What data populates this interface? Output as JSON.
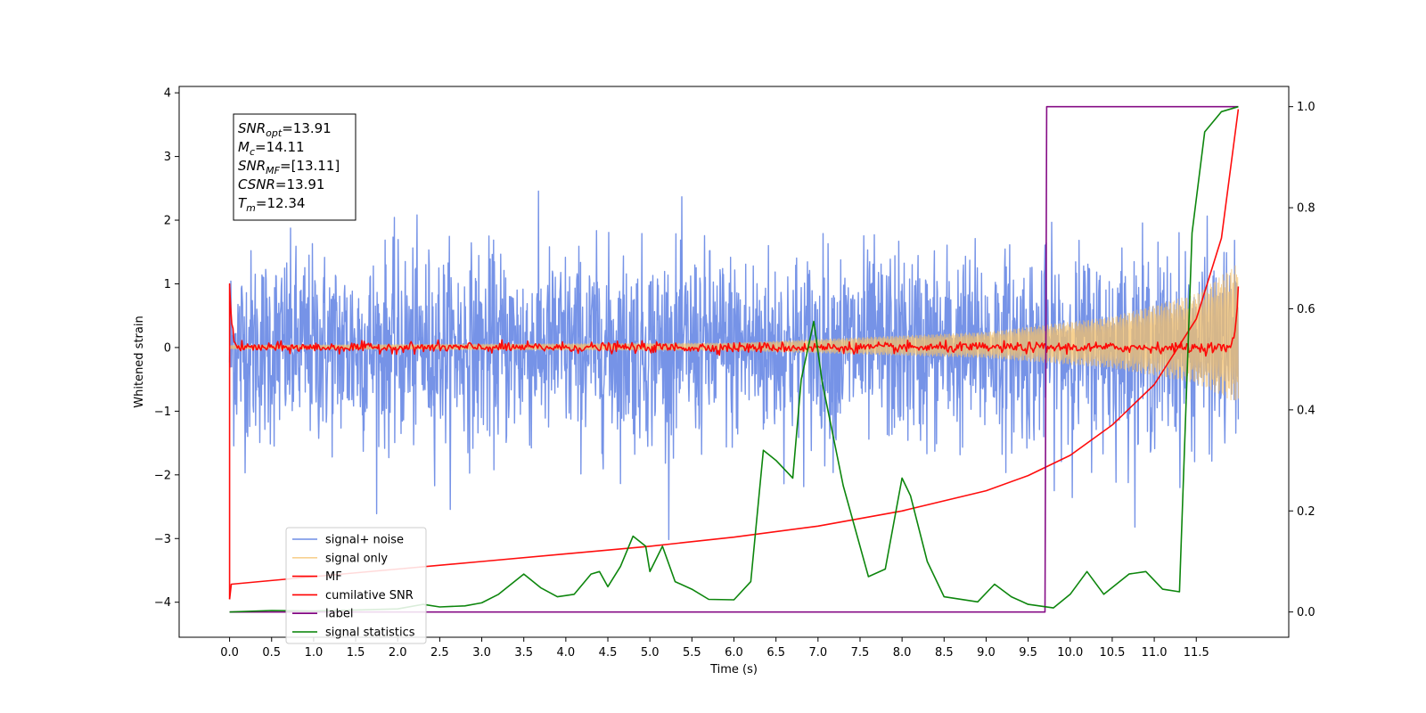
{
  "chart_data": {
    "type": "line",
    "xlabel": "Time (s)",
    "ylabel": "Whitened strain",
    "xlim": [
      -0.6,
      12.6
    ],
    "ylim": [
      -4.55,
      4.1
    ],
    "ylim_right": [
      -0.05,
      1.04
    ],
    "x_ticks": [
      "0.0",
      "0.5",
      "1.0",
      "1.5",
      "2.0",
      "2.5",
      "3.0",
      "3.5",
      "4.0",
      "4.5",
      "5.0",
      "5.5",
      "6.0",
      "6.5",
      "7.0",
      "7.5",
      "8.0",
      "8.5",
      "9.0",
      "9.5",
      "10.0",
      "10.5",
      "11.0",
      "11.5"
    ],
    "y_ticks_left": [
      -4,
      -3,
      -2,
      -1,
      0,
      1,
      2,
      3,
      4
    ],
    "y_ticks_right": [
      "0.0",
      "0.2",
      "0.4",
      "0.6",
      "0.8",
      "1.0"
    ],
    "legend_position": "lower-left",
    "annotation": [
      {
        "base": "SNR",
        "sub": "opt",
        "value": "=13.91"
      },
      {
        "base": "M",
        "sub": "c",
        "value": "=14.11"
      },
      {
        "base": "SNR",
        "sub": "MF",
        "value": "=[13.11]"
      },
      {
        "base": "CSNR",
        "sub": "",
        "value": "=13.91"
      },
      {
        "base": "T",
        "sub": "m",
        "value": "=12.34"
      }
    ],
    "series": [
      {
        "name": "signal+ noise",
        "color": "#6f8de6",
        "axis": "left",
        "kind": "noise",
        "amplitude": 0.75,
        "x_start": 0.0,
        "x_end": 12.0
      },
      {
        "name": "signal only",
        "color": "#f5c26b",
        "axis": "left",
        "kind": "chirp",
        "envelope": [
          [
            0.0,
            0.03
          ],
          [
            6.0,
            0.06
          ],
          [
            9.0,
            0.2
          ],
          [
            10.5,
            0.4
          ],
          [
            11.5,
            0.7
          ],
          [
            12.0,
            1.1
          ]
        ],
        "x_start": 0.0,
        "x_end": 12.0
      },
      {
        "name": "MF",
        "color": "#ff0000",
        "axis": "left",
        "kind": "mf",
        "points": [
          [
            0.0,
            1.0
          ],
          [
            0.03,
            0.3
          ],
          [
            0.08,
            0.0
          ],
          [
            11.92,
            0.0
          ],
          [
            11.97,
            0.3
          ],
          [
            12.0,
            1.0
          ]
        ]
      },
      {
        "name": "cumilative SNR",
        "color": "#ff0000",
        "axis": "right",
        "points": [
          [
            0.0,
            0.025
          ],
          [
            0.02,
            0.055
          ],
          [
            1.0,
            0.07
          ],
          [
            2.0,
            0.085
          ],
          [
            3.0,
            0.1
          ],
          [
            4.0,
            0.115
          ],
          [
            5.0,
            0.13
          ],
          [
            6.0,
            0.148
          ],
          [
            7.0,
            0.17
          ],
          [
            8.0,
            0.2
          ],
          [
            9.0,
            0.24
          ],
          [
            9.5,
            0.27
          ],
          [
            10.0,
            0.31
          ],
          [
            10.5,
            0.37
          ],
          [
            11.0,
            0.45
          ],
          [
            11.5,
            0.58
          ],
          [
            11.8,
            0.74
          ],
          [
            12.0,
            0.995
          ]
        ]
      },
      {
        "name": "label",
        "color": "#7f007f",
        "axis": "right",
        "points": [
          [
            0.0,
            0.0
          ],
          [
            9.7,
            0.0
          ],
          [
            9.72,
            1.0
          ],
          [
            12.0,
            1.0
          ]
        ]
      },
      {
        "name": "signal statistics",
        "color": "#008000",
        "axis": "right",
        "points": [
          [
            0.0,
            0.0
          ],
          [
            0.5,
            0.003
          ],
          [
            1.0,
            0.002
          ],
          [
            1.5,
            0.004
          ],
          [
            2.0,
            0.006
          ],
          [
            2.3,
            0.015
          ],
          [
            2.5,
            0.01
          ],
          [
            2.8,
            0.012
          ],
          [
            3.0,
            0.018
          ],
          [
            3.2,
            0.035
          ],
          [
            3.5,
            0.075
          ],
          [
            3.7,
            0.048
          ],
          [
            3.9,
            0.03
          ],
          [
            4.1,
            0.035
          ],
          [
            4.3,
            0.075
          ],
          [
            4.4,
            0.08
          ],
          [
            4.5,
            0.05
          ],
          [
            4.65,
            0.09
          ],
          [
            4.8,
            0.15
          ],
          [
            4.95,
            0.13
          ],
          [
            5.0,
            0.08
          ],
          [
            5.15,
            0.13
          ],
          [
            5.3,
            0.06
          ],
          [
            5.5,
            0.045
          ],
          [
            5.7,
            0.025
          ],
          [
            6.0,
            0.024
          ],
          [
            6.2,
            0.06
          ],
          [
            6.35,
            0.32
          ],
          [
            6.5,
            0.3
          ],
          [
            6.7,
            0.265
          ],
          [
            6.8,
            0.46
          ],
          [
            6.95,
            0.575
          ],
          [
            7.05,
            0.455
          ],
          [
            7.3,
            0.25
          ],
          [
            7.6,
            0.07
          ],
          [
            7.8,
            0.085
          ],
          [
            8.0,
            0.265
          ],
          [
            8.1,
            0.23
          ],
          [
            8.3,
            0.1
          ],
          [
            8.5,
            0.03
          ],
          [
            8.9,
            0.02
          ],
          [
            9.1,
            0.055
          ],
          [
            9.3,
            0.03
          ],
          [
            9.5,
            0.015
          ],
          [
            9.8,
            0.008
          ],
          [
            10.0,
            0.035
          ],
          [
            10.2,
            0.08
          ],
          [
            10.4,
            0.035
          ],
          [
            10.7,
            0.075
          ],
          [
            10.9,
            0.08
          ],
          [
            11.1,
            0.045
          ],
          [
            11.3,
            0.04
          ],
          [
            11.45,
            0.75
          ],
          [
            11.6,
            0.95
          ],
          [
            11.8,
            0.99
          ],
          [
            12.0,
            1.0
          ]
        ]
      }
    ]
  }
}
